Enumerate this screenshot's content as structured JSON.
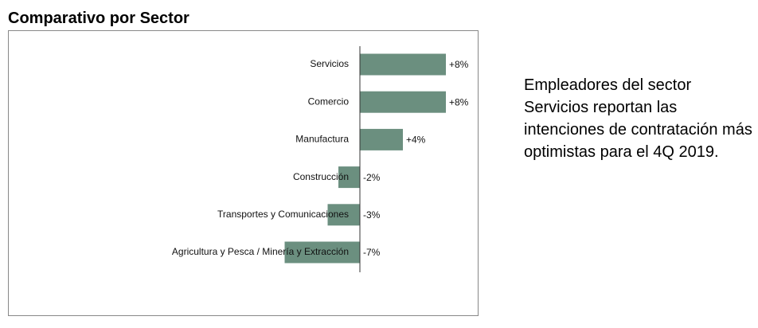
{
  "chart_data": {
    "type": "hbar",
    "title": "Comparativo por Sector",
    "categories": [
      "Servicios",
      "Comercio",
      "Manufactura",
      "Construcción",
      "Transportes y Comunicaciones",
      "Agricultura y Pesca / Minería y Extracción"
    ],
    "values": [
      8,
      8,
      4,
      -2,
      -3,
      -7
    ],
    "value_labels": [
      "+8%",
      "+8%",
      "+4%",
      "-2%",
      "-3%",
      "-7%"
    ],
    "color": "#6b8f7f",
    "annotation": "Empleadores del sector Servicios reportan las intenciones de contratación más optimistas para el 4Q 2019."
  }
}
